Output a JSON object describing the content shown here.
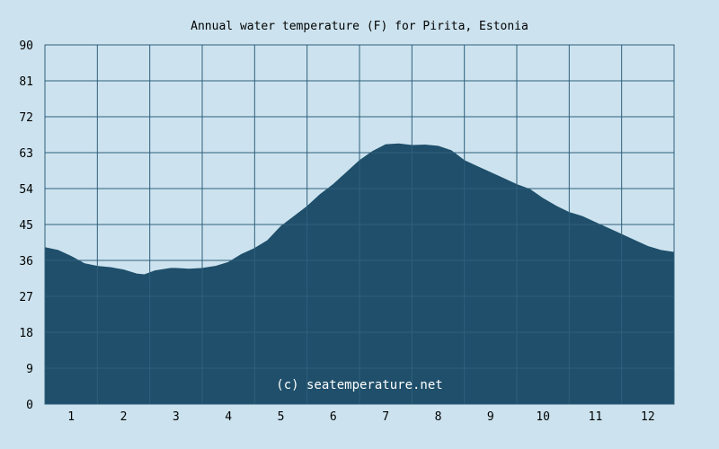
{
  "chart_data": {
    "type": "area",
    "title": "Annual water temperature (F) for Pirita, Estonia",
    "xlabel": "",
    "ylabel": "",
    "x_ticks": [
      "1",
      "2",
      "3",
      "4",
      "5",
      "6",
      "7",
      "8",
      "9",
      "10",
      "11",
      "12"
    ],
    "y_ticks": [
      "0",
      "9",
      "18",
      "27",
      "36",
      "45",
      "54",
      "63",
      "72",
      "81",
      "90"
    ],
    "ylim": [
      0,
      90
    ],
    "xlim": [
      0.5,
      12.5
    ],
    "grid": true,
    "series": [
      {
        "x": [
          0.5,
          0.75,
          1.0,
          1.25,
          1.5,
          1.75,
          2.0,
          2.25,
          2.4,
          2.6,
          2.9,
          3.0,
          3.25,
          3.5,
          3.75,
          4.0,
          4.25,
          4.5,
          4.75,
          5.0,
          5.25,
          5.5,
          5.75,
          6.0,
          6.25,
          6.5,
          6.75,
          7.0,
          7.25,
          7.5,
          7.75,
          8.0,
          8.25,
          8.5,
          8.75,
          9.0,
          9.25,
          9.5,
          9.75,
          10.0,
          10.25,
          10.5,
          10.75,
          11.0,
          11.25,
          11.5,
          11.75,
          12.0,
          12.25,
          12.5
        ],
        "values": [
          39.2,
          38.5,
          37.0,
          35.2,
          34.5,
          34.2,
          33.6,
          32.6,
          32.4,
          33.4,
          34.0,
          34.0,
          33.8,
          34.0,
          34.5,
          35.5,
          37.5,
          39.0,
          41.0,
          44.5,
          47.0,
          49.5,
          52.5,
          55.0,
          58.0,
          61.0,
          63.3,
          65.0,
          65.2,
          64.8,
          64.9,
          64.6,
          63.5,
          61.0,
          59.5,
          58.0,
          56.5,
          55.0,
          53.8,
          51.5,
          49.6,
          48.0,
          47.0,
          45.5,
          44.0,
          42.5,
          41.0,
          39.5,
          38.5,
          38.0
        ]
      }
    ],
    "colors": {
      "background": "#cce3ef",
      "plot_background": "#cce3ef",
      "fill": "#1f4f6b",
      "grid": "#2f5f7b"
    },
    "annotations": [
      "(c) seatemperature.net"
    ]
  }
}
